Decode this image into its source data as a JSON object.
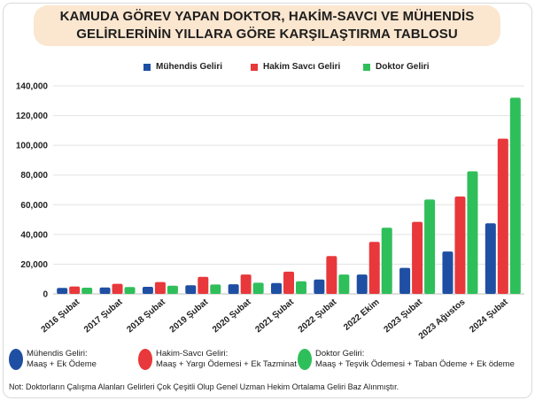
{
  "title": {
    "line1": "KAMUDA GÖREV YAPAN DOKTOR, HAKİM-SAVCI VE MÜHENDİS",
    "line2": "GELİRLERİNİN YILLARA GÖRE KARŞILAŞTIRMA TABLOSU"
  },
  "colors": {
    "muhendis": "#1f4fa3",
    "hakim": "#e8383b",
    "doktor": "#2fbf5a",
    "title_bg": "#fbe6cf"
  },
  "chart_data": {
    "type": "bar",
    "categories": [
      "2016 Şubat",
      "2017 Şubat",
      "2018 Şubat",
      "2019 Şubat",
      "2020 Şubat",
      "2021 Şubat",
      "2022 Şubat",
      "2022 Ekim",
      "2023 Şubat",
      "2023 Ağustos",
      "2024 Şubat"
    ],
    "series": [
      {
        "name": "Mühendis Geliri",
        "color": "#1f4fa3",
        "values": [
          4000,
          4300,
          4800,
          5800,
          6500,
          7300,
          9700,
          13000,
          17500,
          28500,
          47500
        ]
      },
      {
        "name": "Hakim Savcı Geliri",
        "color": "#e8383b",
        "values": [
          5000,
          6800,
          8000,
          11500,
          13000,
          15000,
          25500,
          35000,
          48500,
          65500,
          104500
        ]
      },
      {
        "name": "Doktor Geliri",
        "color": "#2fbf5a",
        "values": [
          4200,
          4600,
          5500,
          6300,
          7500,
          8500,
          13000,
          44500,
          63500,
          82500,
          132000
        ]
      }
    ],
    "ylim": [
      0,
      140000
    ],
    "yticks": [
      "0",
      "20,000",
      "40,000",
      "60,000",
      "80,000",
      "100,000",
      "120,000",
      "140,000"
    ],
    "ytick_values": [
      0,
      20000,
      40000,
      60000,
      80000,
      100000,
      120000,
      140000
    ],
    "legend_position": "top",
    "grid": true
  },
  "bottom_legend": [
    {
      "title": "Mühendis Geliri:",
      "detail": "Maaş  +  Ek Ödeme",
      "color": "#1f4fa3"
    },
    {
      "title": "Hakim-Savcı Geliri:",
      "detail": "Maaş + Yargı Ödemesi + Ek Tazminat",
      "color": "#e8383b"
    },
    {
      "title": "Doktor Geliri:",
      "detail": "Maaş + Teşvik Ödemesi + Taban Ödeme + Ek ödeme",
      "color": "#2fbf5a"
    }
  ],
  "note": "Not: Doktorların Çalışma Alanları Gelirleri Çok Çeşitli Olup Genel Uzman Hekim Ortalama Geliri Baz Alınmıştır."
}
